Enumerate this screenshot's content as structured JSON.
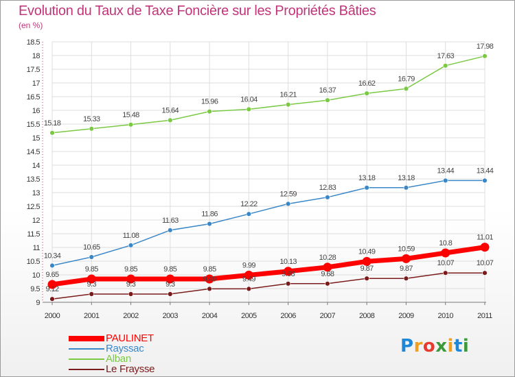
{
  "title": "Evolution du Taux de Taxe Foncière sur les Propriétés Bâties",
  "unit_label": "(en %)",
  "brand": {
    "logo_text": "Proxiti",
    "letter_colors": [
      "#1e88d8",
      "#f0a020",
      "#e63b2e",
      "#3a9a3a",
      "#f0a020",
      "#1e88d8",
      "#3a9a3a"
    ]
  },
  "colors": {
    "title": "#c0357a",
    "grid": "#dddddd",
    "axis": "#777777"
  },
  "chart_data": {
    "type": "line",
    "title": "Evolution du Taux de Taxe Foncière sur les Propriétés Bâties",
    "ylabel": "(en %)",
    "xlabel": "",
    "x": [
      "2000",
      "2001",
      "2002",
      "2003",
      "2004",
      "2005",
      "2006",
      "2007",
      "2008",
      "2009",
      "2010",
      "2011"
    ],
    "ylim": [
      9,
      18.5
    ],
    "yticks": [
      "9",
      "9.5",
      "10",
      "10.5",
      "11",
      "11.5",
      "12",
      "12.5",
      "13",
      "13.5",
      "14",
      "14.5",
      "15",
      "15.5",
      "16",
      "16.5",
      "17",
      "17.5",
      "18",
      "18.5"
    ],
    "grid": true,
    "legend_position": "bottom-left",
    "series": [
      {
        "name": "PAULINET",
        "color": "#ff0000",
        "emphasis": true,
        "values": [
          9.65,
          9.85,
          9.85,
          9.85,
          9.85,
          9.99,
          10.13,
          10.28,
          10.49,
          10.59,
          10.8,
          11.01
        ],
        "labels": [
          "9.65",
          "9.85",
          "9.85",
          "9.85",
          "9.85",
          "9.99",
          "10.13",
          "10.28",
          "10.49",
          "10.59",
          "10.8",
          "11.01"
        ]
      },
      {
        "name": "Rayssac",
        "color": "#3a87c8",
        "emphasis": false,
        "values": [
          10.34,
          10.65,
          11.08,
          11.63,
          11.86,
          12.22,
          12.59,
          12.83,
          13.18,
          13.18,
          13.44,
          13.44
        ],
        "labels": [
          "10.34",
          "10.65",
          "11.08",
          "11.63",
          "11.86",
          "12.22",
          "12.59",
          "12.83",
          "13.18",
          "13.18",
          "13.44",
          "13.44"
        ]
      },
      {
        "name": "Alban",
        "color": "#7ac943",
        "emphasis": false,
        "values": [
          15.18,
          15.33,
          15.48,
          15.64,
          15.96,
          16.04,
          16.21,
          16.37,
          16.62,
          16.79,
          17.63,
          17.98
        ],
        "labels": [
          "15.18",
          "15.33",
          "15.48",
          "15.64",
          "15.96",
          "16.04",
          "16.21",
          "16.37",
          "16.62",
          "16.79",
          "17.63",
          "17.98"
        ]
      },
      {
        "name": "Le Fraysse",
        "color": "#7a1a1a",
        "emphasis": false,
        "values": [
          9.12,
          9.3,
          9.3,
          9.3,
          9.49,
          9.49,
          9.68,
          9.68,
          9.87,
          9.87,
          10.07,
          10.07
        ],
        "labels": [
          "9.12",
          "9.3",
          "9.3",
          "9.3",
          "9.49",
          "9.49",
          "9.68",
          "9.68",
          "9.87",
          "9.87",
          "10.07",
          "10.07"
        ]
      }
    ]
  }
}
